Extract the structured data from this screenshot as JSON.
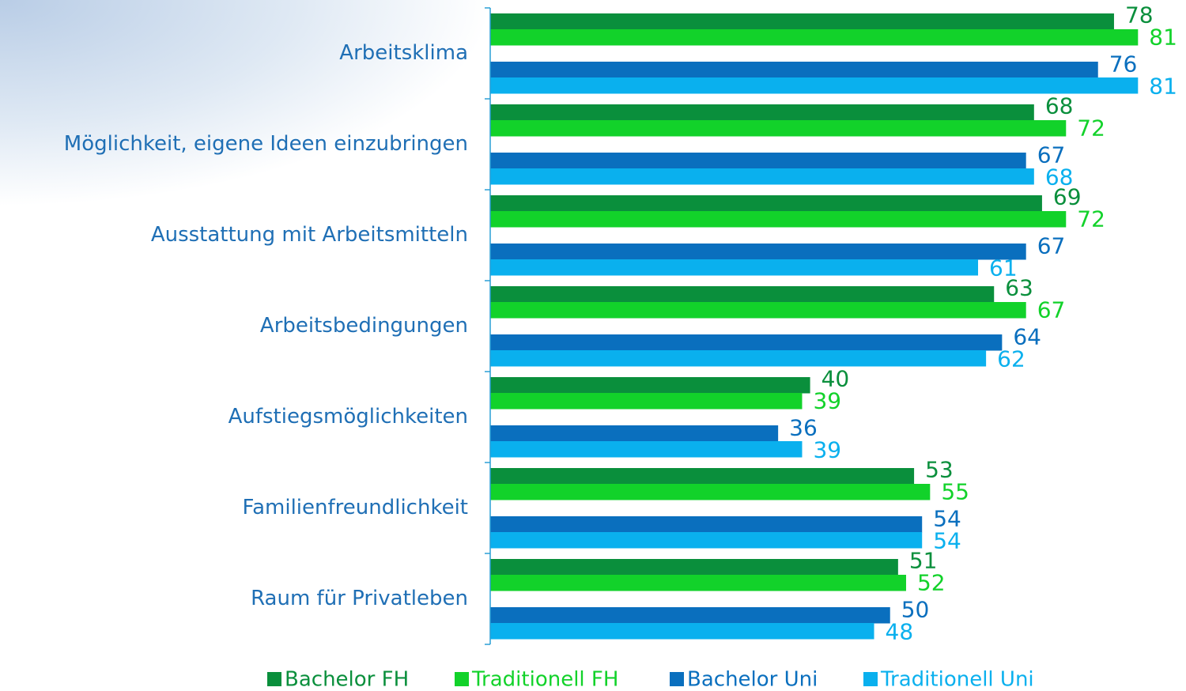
{
  "chart_data": {
    "type": "barh",
    "categories": [
      "Arbeitsklima",
      "Möglichkeit, eigene Ideen einzubringen",
      "Ausstattung mit Arbeitsmitteln",
      "Arbeitsbedingungen",
      "Aufstiegsmöglichkeiten",
      "Familienfreundlichkeit",
      "Raum für Privatleben"
    ],
    "series": [
      {
        "name": "Bachelor FH",
        "color": "#0a8f3c",
        "values": [
          78,
          68,
          69,
          63,
          40,
          53,
          51
        ]
      },
      {
        "name": "Traditionell FH",
        "color": "#12d22a",
        "values": [
          81,
          72,
          72,
          67,
          39,
          55,
          52
        ]
      },
      {
        "name": "Bachelor Uni",
        "color": "#0a6fbe",
        "values": [
          76,
          67,
          67,
          64,
          36,
          54,
          50
        ]
      },
      {
        "name": "Traditionell Uni",
        "color": "#0ab0ee",
        "values": [
          81,
          68,
          61,
          62,
          39,
          54,
          48
        ]
      }
    ],
    "xlim": [
      0,
      87
    ]
  }
}
